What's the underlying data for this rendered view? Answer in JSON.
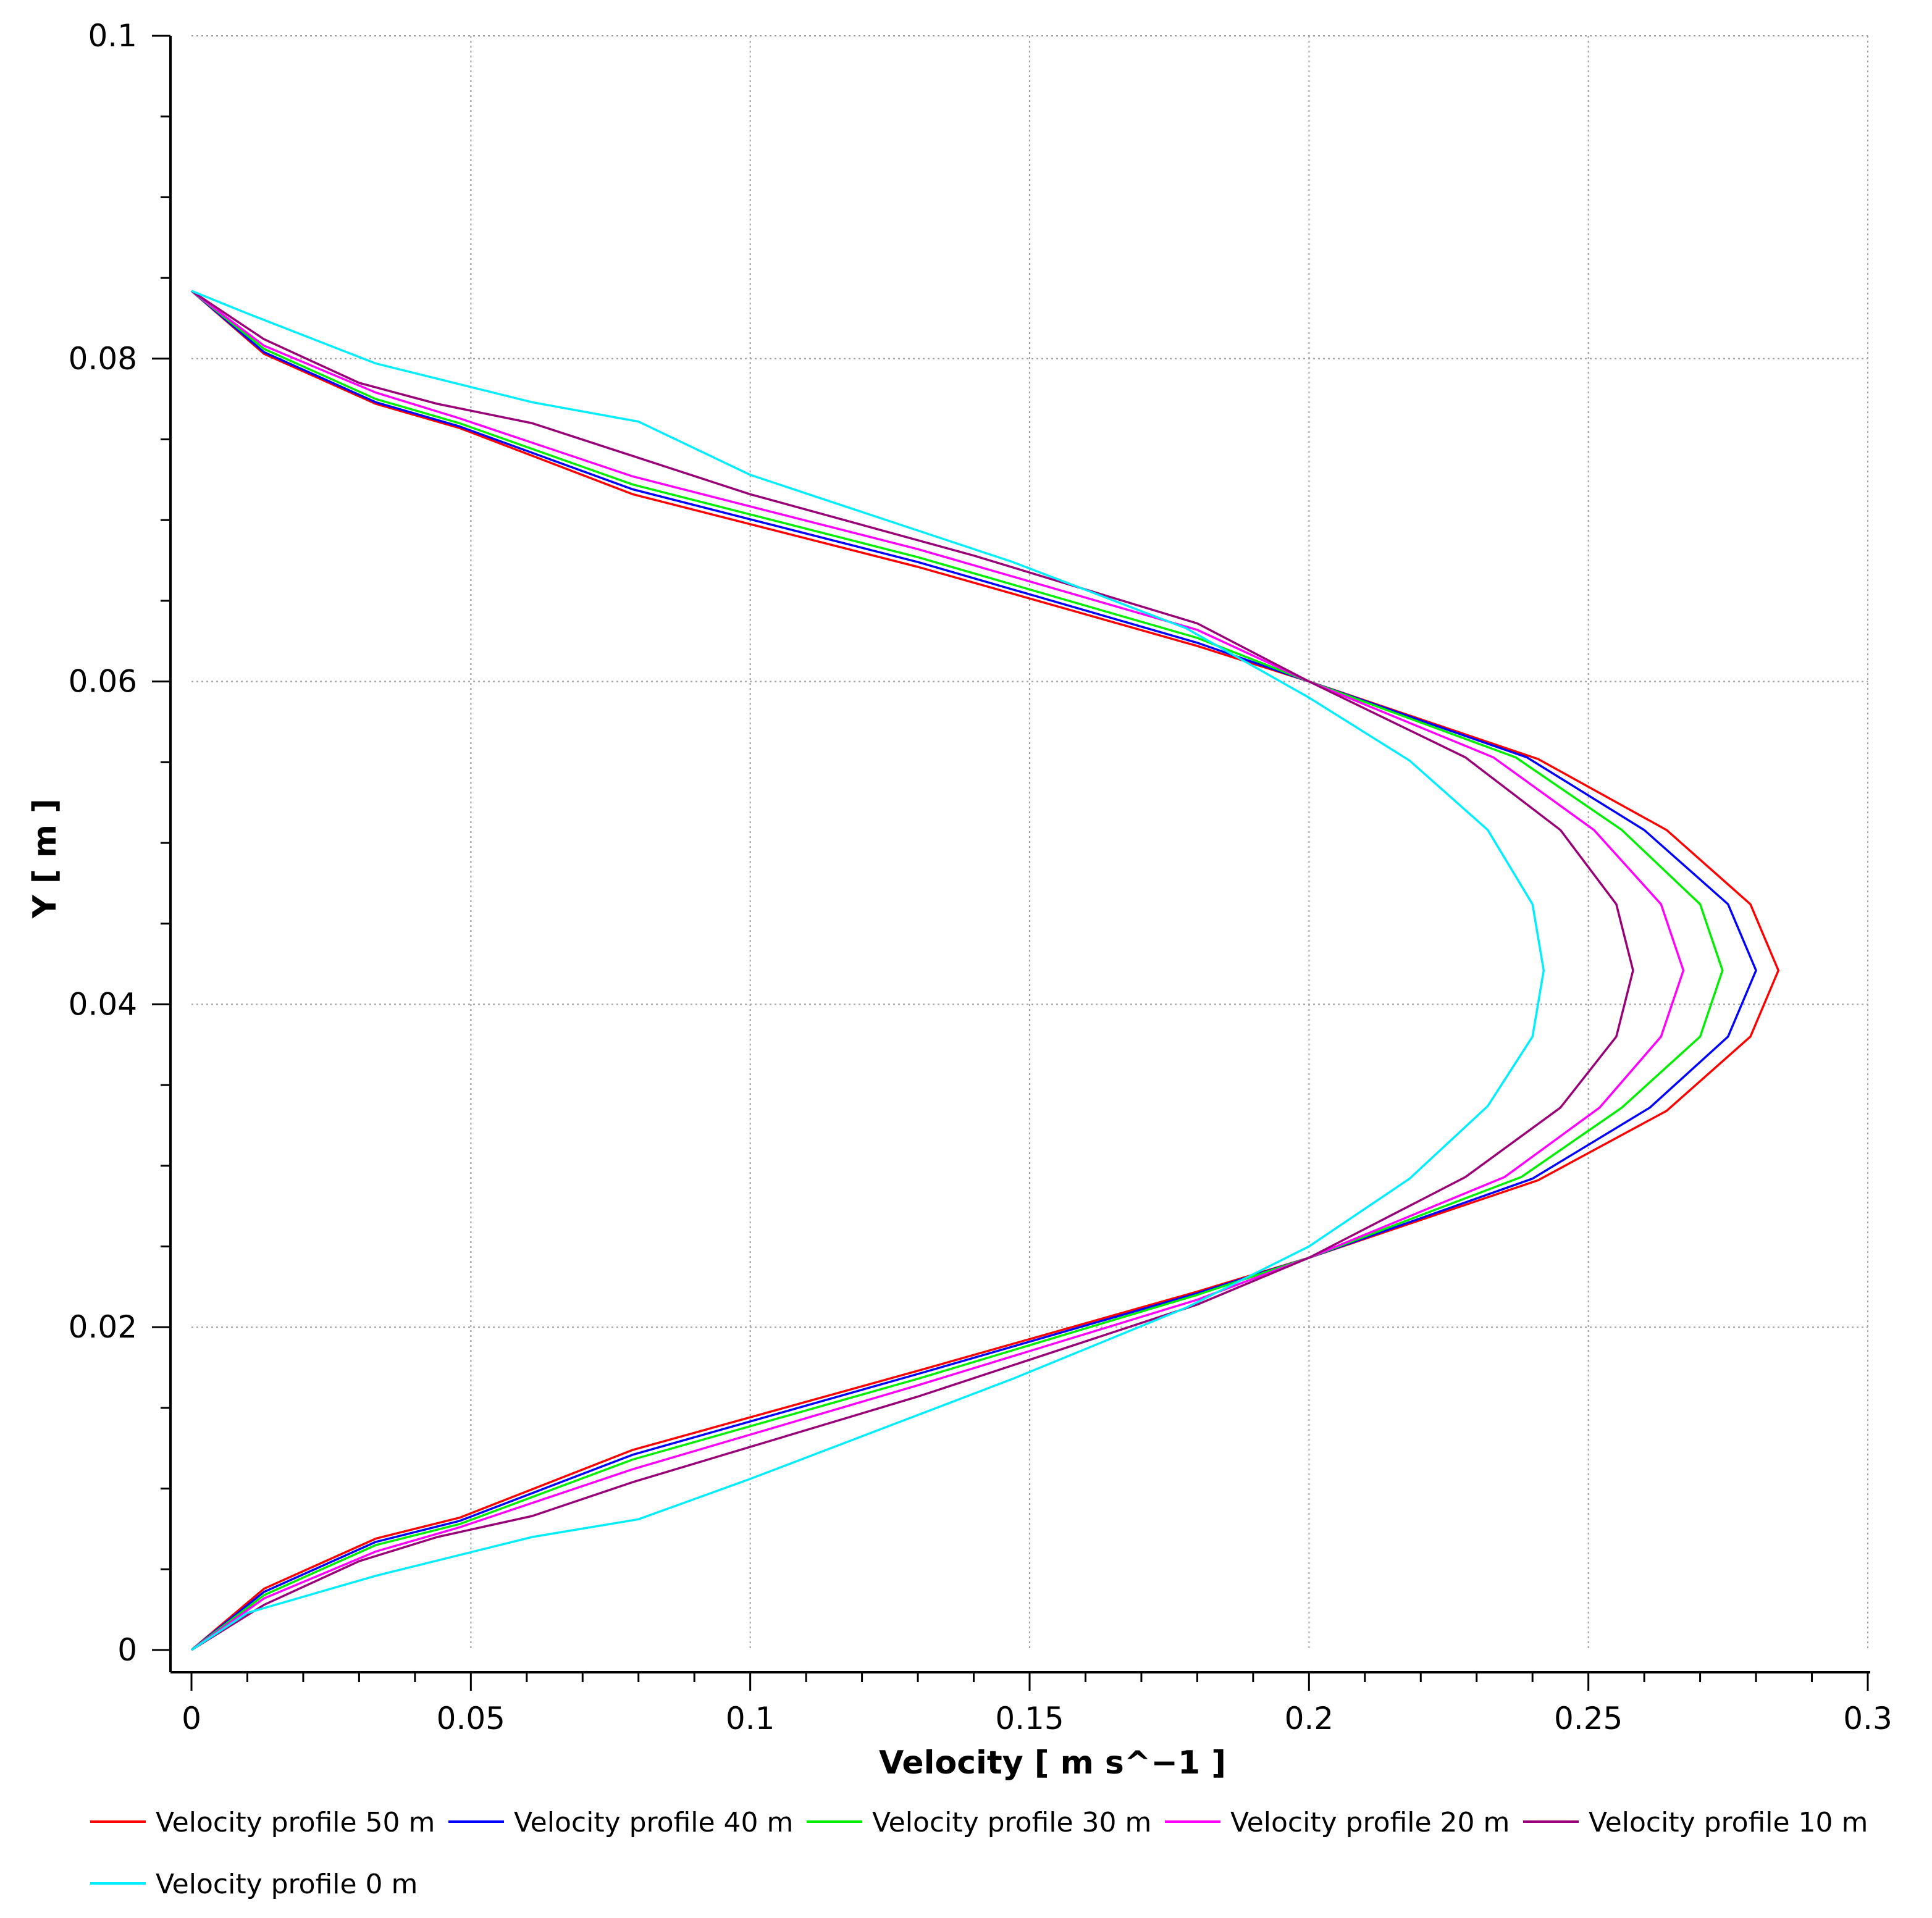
{
  "chart_data": {
    "type": "line",
    "title": "",
    "xlabel": "Velocity [ m s^−1 ]",
    "ylabel": "Y [ m ]",
    "xlim": [
      0,
      0.3
    ],
    "ylim": [
      0,
      0.1
    ],
    "x_ticks": [
      "0",
      "0.05",
      "0.1",
      "0.15",
      "0.2",
      "0.25",
      "0.3"
    ],
    "y_ticks": [
      "0",
      "0.02",
      "0.04",
      "0.06",
      "0.08",
      "0.1"
    ],
    "grid": true,
    "legend_position": "bottom",
    "series": [
      {
        "name": "Velocity profile 50 m",
        "color": "#ff0000",
        "points": [
          [
            0,
            0
          ],
          [
            0.013,
            0.0038
          ],
          [
            0.033,
            0.0069
          ],
          [
            0.048,
            0.0082
          ],
          [
            0.079,
            0.0124
          ],
          [
            0.13,
            0.0173
          ],
          [
            0.18,
            0.0222
          ],
          [
            0.2,
            0.0243
          ],
          [
            0.241,
            0.0291
          ],
          [
            0.264,
            0.0334
          ],
          [
            0.279,
            0.038
          ],
          [
            0.284,
            0.0421
          ],
          [
            0.279,
            0.0462
          ],
          [
            0.264,
            0.0508
          ],
          [
            0.241,
            0.0552
          ],
          [
            0.2,
            0.06
          ],
          [
            0.18,
            0.0622
          ],
          [
            0.13,
            0.0671
          ],
          [
            0.079,
            0.0716
          ],
          [
            0.048,
            0.0757
          ],
          [
            0.033,
            0.0772
          ],
          [
            0.013,
            0.0803
          ],
          [
            0,
            0.0842
          ]
        ]
      },
      {
        "name": "Velocity profile 40 m",
        "color": "#0000ff",
        "points": [
          [
            0,
            0
          ],
          [
            0.013,
            0.0036
          ],
          [
            0.033,
            0.0067
          ],
          [
            0.048,
            0.008
          ],
          [
            0.079,
            0.0121
          ],
          [
            0.13,
            0.0171
          ],
          [
            0.18,
            0.0221
          ],
          [
            0.2,
            0.0243
          ],
          [
            0.24,
            0.0292
          ],
          [
            0.261,
            0.0336
          ],
          [
            0.275,
            0.038
          ],
          [
            0.28,
            0.0421
          ],
          [
            0.275,
            0.0462
          ],
          [
            0.26,
            0.0508
          ],
          [
            0.239,
            0.0553
          ],
          [
            0.2,
            0.06
          ],
          [
            0.18,
            0.0624
          ],
          [
            0.13,
            0.0674
          ],
          [
            0.079,
            0.0719
          ],
          [
            0.048,
            0.0758
          ],
          [
            0.033,
            0.0773
          ],
          [
            0.013,
            0.0804
          ],
          [
            0,
            0.0842
          ]
        ]
      },
      {
        "name": "Velocity profile 30 m",
        "color": "#00ee00",
        "points": [
          [
            0,
            0
          ],
          [
            0.013,
            0.0034
          ],
          [
            0.033,
            0.0065
          ],
          [
            0.048,
            0.0078
          ],
          [
            0.079,
            0.0118
          ],
          [
            0.13,
            0.0168
          ],
          [
            0.18,
            0.022
          ],
          [
            0.2,
            0.0243
          ],
          [
            0.238,
            0.0293
          ],
          [
            0.256,
            0.0336
          ],
          [
            0.27,
            0.038
          ],
          [
            0.274,
            0.0421
          ],
          [
            0.27,
            0.0462
          ],
          [
            0.256,
            0.0508
          ],
          [
            0.237,
            0.0553
          ],
          [
            0.2,
            0.06
          ],
          [
            0.18,
            0.0627
          ],
          [
            0.13,
            0.0677
          ],
          [
            0.079,
            0.0722
          ],
          [
            0.048,
            0.076
          ],
          [
            0.033,
            0.0775
          ],
          [
            0.013,
            0.0806
          ],
          [
            0,
            0.0842
          ]
        ]
      },
      {
        "name": "Velocity profile 20 m",
        "color": "#ff00ff",
        "points": [
          [
            0,
            0
          ],
          [
            0.013,
            0.0032
          ],
          [
            0.033,
            0.0061
          ],
          [
            0.048,
            0.0076
          ],
          [
            0.079,
            0.0112
          ],
          [
            0.13,
            0.0164
          ],
          [
            0.18,
            0.0217
          ],
          [
            0.2,
            0.0243
          ],
          [
            0.235,
            0.0293
          ],
          [
            0.252,
            0.0336
          ],
          [
            0.263,
            0.038
          ],
          [
            0.267,
            0.0421
          ],
          [
            0.263,
            0.0462
          ],
          [
            0.251,
            0.0508
          ],
          [
            0.233,
            0.0553
          ],
          [
            0.2,
            0.06
          ],
          [
            0.18,
            0.0632
          ],
          [
            0.13,
            0.0682
          ],
          [
            0.079,
            0.0727
          ],
          [
            0.048,
            0.0763
          ],
          [
            0.033,
            0.0779
          ],
          [
            0.013,
            0.0808
          ],
          [
            0,
            0.0842
          ]
        ]
      },
      {
        "name": "Velocity profile 10 m",
        "color": "#990077",
        "points": [
          [
            0,
            0
          ],
          [
            0.013,
            0.0028
          ],
          [
            0.03,
            0.0055
          ],
          [
            0.044,
            0.007
          ],
          [
            0.061,
            0.0083
          ],
          [
            0.079,
            0.0104
          ],
          [
            0.13,
            0.0157
          ],
          [
            0.18,
            0.0214
          ],
          [
            0.2,
            0.0243
          ],
          [
            0.228,
            0.0293
          ],
          [
            0.245,
            0.0336
          ],
          [
            0.255,
            0.038
          ],
          [
            0.258,
            0.0421
          ],
          [
            0.255,
            0.0462
          ],
          [
            0.245,
            0.0508
          ],
          [
            0.228,
            0.0553
          ],
          [
            0.2,
            0.06
          ],
          [
            0.18,
            0.0636
          ],
          [
            0.14,
            0.0678
          ],
          [
            0.1,
            0.0716
          ],
          [
            0.061,
            0.076
          ],
          [
            0.044,
            0.0772
          ],
          [
            0.03,
            0.0785
          ],
          [
            0.013,
            0.0812
          ],
          [
            0,
            0.0842
          ]
        ]
      },
      {
        "name": "Velocity profile 0 m",
        "color": "#00eeff",
        "points": [
          [
            0,
            0
          ],
          [
            0.01,
            0.0023
          ],
          [
            0.033,
            0.0046
          ],
          [
            0.061,
            0.007
          ],
          [
            0.08,
            0.0081
          ],
          [
            0.1,
            0.0106
          ],
          [
            0.147,
            0.0168
          ],
          [
            0.178,
            0.0212
          ],
          [
            0.2,
            0.025
          ],
          [
            0.218,
            0.0292
          ],
          [
            0.232,
            0.0337
          ],
          [
            0.24,
            0.038
          ],
          [
            0.242,
            0.0421
          ],
          [
            0.24,
            0.0462
          ],
          [
            0.232,
            0.0508
          ],
          [
            0.218,
            0.0551
          ],
          [
            0.2,
            0.059
          ],
          [
            0.178,
            0.0633
          ],
          [
            0.147,
            0.0674
          ],
          [
            0.1,
            0.0728
          ],
          [
            0.08,
            0.0761
          ],
          [
            0.061,
            0.0773
          ],
          [
            0.033,
            0.0797
          ],
          [
            0.01,
            0.0828
          ],
          [
            0,
            0.0842
          ]
        ]
      }
    ]
  }
}
